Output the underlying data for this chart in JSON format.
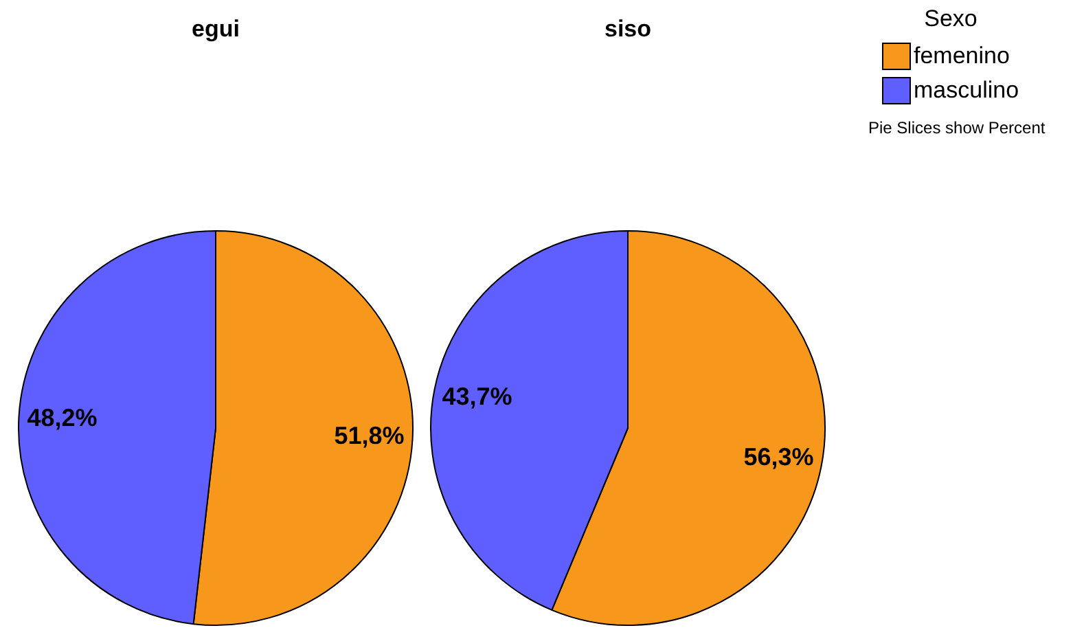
{
  "chart_data": [
    {
      "type": "pie",
      "title": "egui",
      "categories": [
        "femenino",
        "masculino"
      ],
      "values": [
        51.8,
        48.2
      ],
      "colors": [
        "#f7981d",
        "#5f5fff"
      ],
      "value_labels": [
        "51,8%",
        "48,2%"
      ],
      "legend": "top right",
      "legend_title": "Sexo",
      "annotations": [
        "Pie Slices show Percent"
      ]
    },
    {
      "type": "pie",
      "title": "siso",
      "categories": [
        null,
        null
      ],
      "values": [
        56.3,
        43.7
      ],
      "colors": [
        "#f7981d",
        "#5f5fff"
      ],
      "value_labels": [
        "56,3%",
        "43,7%"
      ]
    }
  ]
}
